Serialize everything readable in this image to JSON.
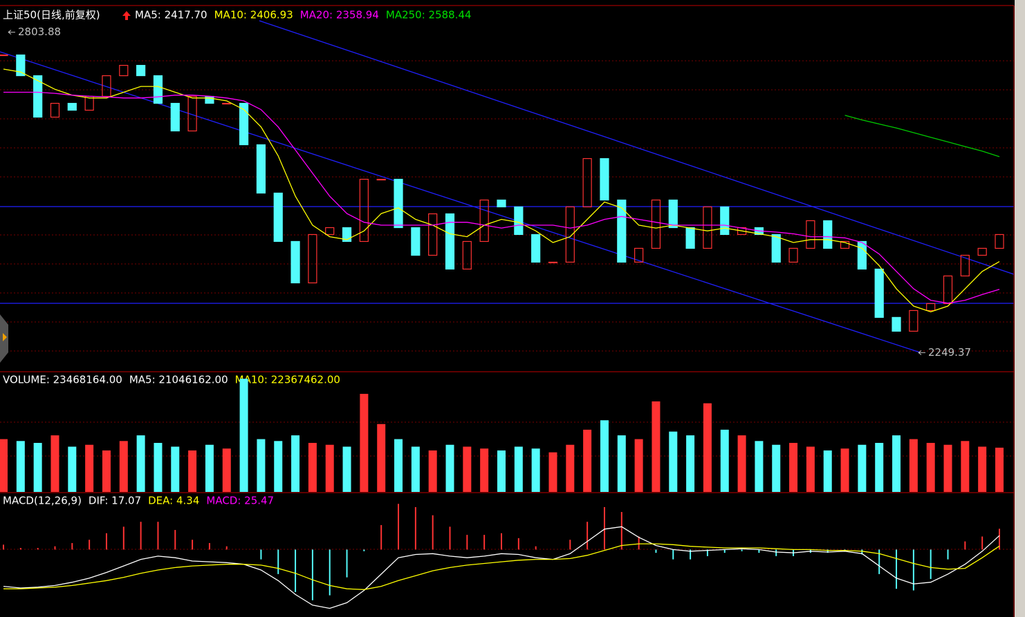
{
  "chart_data": [
    {
      "type": "candlestick",
      "title": "上证50(日线,前复权)",
      "legend": [
        "MA5: 2417.70",
        "MA10: 2406.93",
        "MA20: 2358.94",
        "MA250: 2588.44"
      ],
      "legend_colors": [
        "#ffffff",
        "#ffff00",
        "#ff00ff",
        "#00e000"
      ],
      "up_color": "#ff3232",
      "down_color": "#54fcfc",
      "values": [
        2764.5,
        2728.6,
        2656.9,
        2680.8,
        2668.9,
        2692.8,
        2728.6,
        2746.5,
        2728.6,
        2680.8,
        2633.0,
        2692.8,
        2680.8,
        2680.8,
        2609.1,
        2525.5,
        2441.8,
        2370.1,
        2453.8,
        2465.7,
        2441.8,
        2549.4,
        2549.4,
        2465.7,
        2417.9,
        2489.6,
        2394.0,
        2441.8,
        2513.5,
        2501.6,
        2453.8,
        2406.0,
        2406.0,
        2501.6,
        2585.2,
        2513.5,
        2406.0,
        2429.9,
        2513.5,
        2465.7,
        2429.9,
        2501.6,
        2453.8,
        2465.7,
        2453.8,
        2406.0,
        2429.9,
        2477.7,
        2429.9,
        2441.8,
        2394.0,
        2310.4,
        2286.5,
        2322.3,
        2334.3,
        2382.1,
        2417.9,
        2429.9,
        2453.8
      ],
      "series": [
        {
          "name": "MA10",
          "color": "#ffff00",
          "values": [
            2740,
            2735,
            2720,
            2705,
            2695,
            2690,
            2690,
            2700,
            2710,
            2710,
            2700,
            2690,
            2690,
            2685,
            2670,
            2640,
            2590,
            2520,
            2470,
            2450,
            2445,
            2460,
            2490,
            2500,
            2480,
            2470,
            2455,
            2450,
            2470,
            2480,
            2475,
            2460,
            2440,
            2450,
            2480,
            2510,
            2500,
            2470,
            2465,
            2470,
            2465,
            2460,
            2465,
            2460,
            2455,
            2450,
            2440,
            2445,
            2445,
            2440,
            2430,
            2400,
            2360,
            2330,
            2320,
            2330,
            2360,
            2390,
            2406.93
          ]
        },
        {
          "name": "MA20",
          "color": "#ff00ff",
          "values": [
            2700,
            2700,
            2700,
            2698,
            2695,
            2693,
            2692,
            2690,
            2690,
            2692,
            2695,
            2695,
            2693,
            2690,
            2685,
            2670,
            2640,
            2600,
            2560,
            2520,
            2490,
            2475,
            2470,
            2470,
            2470,
            2470,
            2475,
            2475,
            2470,
            2465,
            2470,
            2470,
            2470,
            2465,
            2470,
            2480,
            2485,
            2480,
            2475,
            2470,
            2470,
            2470,
            2470,
            2465,
            2460,
            2458,
            2455,
            2450,
            2450,
            2448,
            2440,
            2420,
            2390,
            2360,
            2340,
            2335,
            2340,
            2350,
            2358.94
          ]
        },
        {
          "name": "MA250",
          "color": "#00c800",
          "values": [
            null,
            null,
            null,
            null,
            null,
            null,
            null,
            null,
            null,
            null,
            null,
            null,
            null,
            null,
            null,
            null,
            null,
            null,
            null,
            null,
            null,
            null,
            null,
            null,
            null,
            null,
            null,
            null,
            null,
            null,
            null,
            null,
            null,
            null,
            null,
            null,
            null,
            null,
            null,
            null,
            null,
            null,
            null,
            null,
            null,
            null,
            null,
            null,
            null,
            2660,
            2652,
            2645,
            2638,
            2630,
            2622,
            2614,
            2606,
            2598,
            2588.44
          ]
        }
      ],
      "annotations": [
        2803.88,
        2249.37
      ],
      "ylim": [
        2220,
        2850
      ]
    },
    {
      "type": "volume",
      "legend": [
        "VOLUME: 23468164.00",
        "MA5: 21046162.00",
        "MA10: 22367462.00"
      ],
      "legend_colors": [
        "#ffffff",
        "#ffffff",
        "#ffff00"
      ],
      "values": [
        28000000,
        27000000,
        26000000,
        30000000,
        24000000,
        25000000,
        22000000,
        27000000,
        30000000,
        26000000,
        24000000,
        22000000,
        25000000,
        23000000,
        60000000,
        28000000,
        27000000,
        30000000,
        26000000,
        25000000,
        24000000,
        52000000,
        36000000,
        28000000,
        24000000,
        22000000,
        25000000,
        24000000,
        23000000,
        22000000,
        24000000,
        23000000,
        21000000,
        25000000,
        33000000,
        38000000,
        30000000,
        28000000,
        48000000,
        32000000,
        30000000,
        47000000,
        33000000,
        30000000,
        27000000,
        25000000,
        26000000,
        24000000,
        22000000,
        23000000,
        25000000,
        26000000,
        30000000,
        28000000,
        26000000,
        25000000,
        27000000,
        24000000,
        23468164
      ],
      "ylim": [
        0,
        63000000
      ]
    },
    {
      "type": "macd",
      "title": "MACD(12,26,9)",
      "legend": [
        "DIF: 17.07",
        "DEA: 4.34",
        "MACD: 25.47"
      ],
      "legend_colors": [
        "#ffffff",
        "#ffff00",
        "#ff00ff"
      ],
      "series": [
        {
          "name": "DIF",
          "color": "#ffffff",
          "values": [
            -45,
            -47,
            -46,
            -44,
            -40,
            -35,
            -28,
            -20,
            -12,
            -8,
            -10,
            -14,
            -15,
            -16,
            -18,
            -25,
            -38,
            -55,
            -68,
            -72,
            -65,
            -50,
            -30,
            -10,
            -6,
            -5,
            -8,
            -10,
            -8,
            -5,
            -6,
            -10,
            -12,
            -5,
            10,
            25,
            28,
            15,
            5,
            0,
            -2,
            -1,
            0,
            1,
            0,
            -3,
            -4,
            -2,
            -3,
            -2,
            -5,
            -20,
            -35,
            -42,
            -40,
            -30,
            -18,
            -2,
            17.07
          ]
        },
        {
          "name": "DEA",
          "color": "#ffff00",
          "values": [
            -48,
            -48,
            -47,
            -46,
            -44,
            -41,
            -38,
            -34,
            -29,
            -25,
            -22,
            -20,
            -19,
            -18,
            -18,
            -19,
            -23,
            -29,
            -37,
            -44,
            -48,
            -49,
            -45,
            -38,
            -32,
            -26,
            -22,
            -19,
            -17,
            -15,
            -13,
            -12,
            -12,
            -11,
            -7,
            -1,
            5,
            7,
            7,
            6,
            4,
            3,
            2,
            2,
            2,
            1,
            0,
            0,
            -1,
            -1,
            -2,
            -5,
            -11,
            -17,
            -22,
            -24,
            -23,
            -10,
            4.34
          ]
        },
        {
          "name": "MACD",
          "color": "#ff3232",
          "values": [
            6,
            2,
            2,
            4,
            8,
            12,
            20,
            28,
            34,
            34,
            24,
            12,
            8,
            4,
            0,
            -12,
            -30,
            -52,
            -62,
            -56,
            -34,
            -2,
            30,
            56,
            52,
            42,
            28,
            18,
            18,
            20,
            14,
            4,
            0,
            12,
            34,
            52,
            46,
            16,
            -4,
            -12,
            -12,
            -8,
            -4,
            -2,
            -4,
            -8,
            -8,
            -4,
            -4,
            -2,
            -6,
            -30,
            -48,
            -50,
            -36,
            -12,
            10,
            16,
            25.47
          ]
        }
      ],
      "down_color": "#54fcfc",
      "ylim": [
        -80,
        68
      ]
    }
  ]
}
